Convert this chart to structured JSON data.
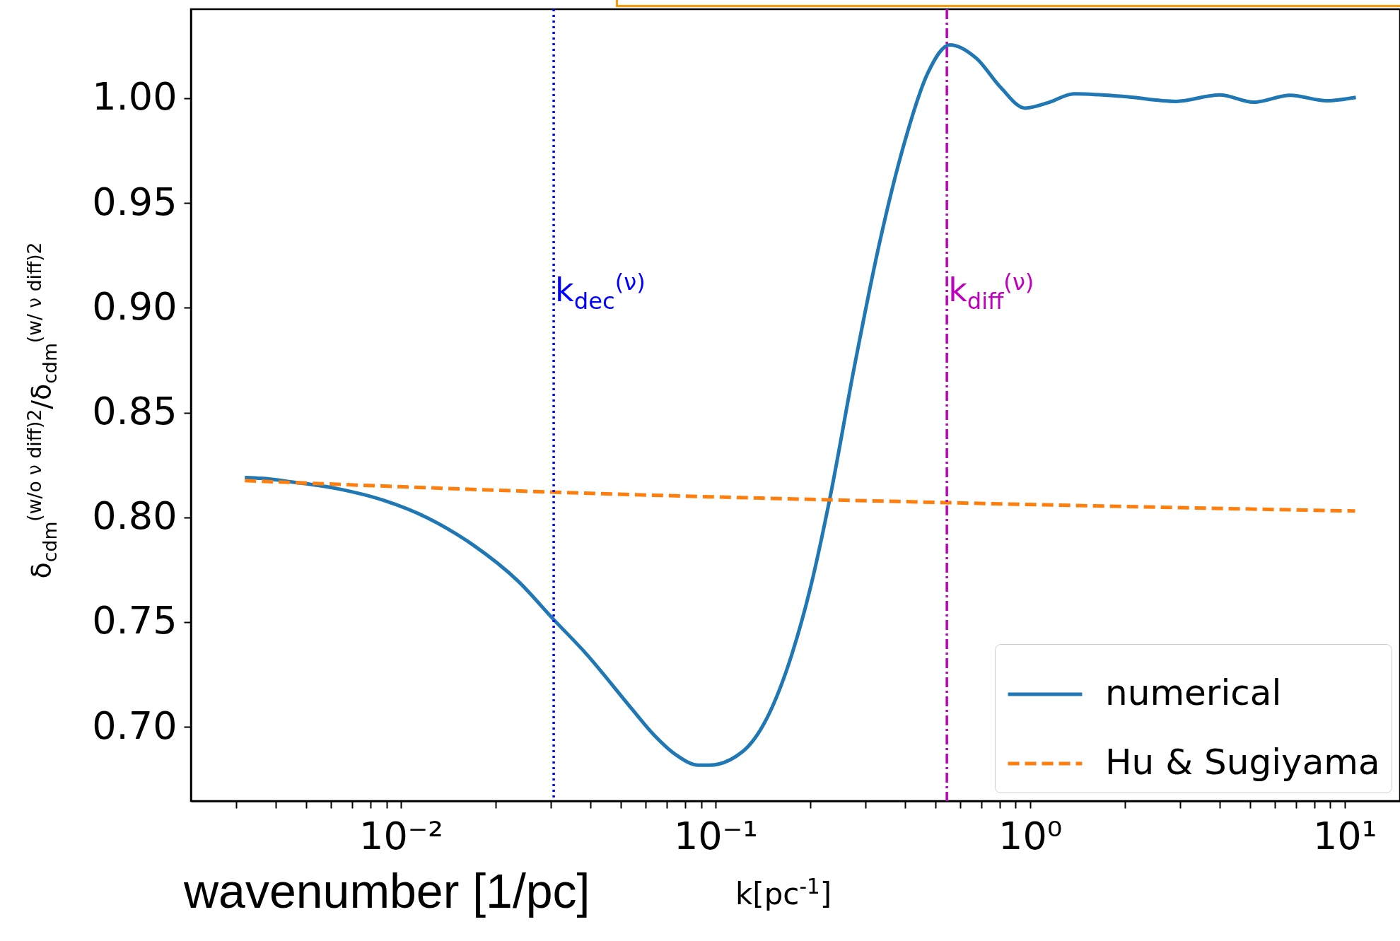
{
  "chart_data": {
    "type": "line",
    "xlabel": "wavenumber [1/pc]",
    "ylabel": "δ$_{cdm}$$^{(w/o ν diff)2}$/δ$_{cdm}$$^{(w/ ν diff)2}$",
    "annotations": [
      "k[pc$^{-1}$]"
    ],
    "log": "x",
    "xlim": [
      0.00215,
      15
    ],
    "ylim": [
      0.6646,
      1.0425
    ],
    "xticks": [
      {
        "value": 0.003,
        "label": null
      },
      {
        "value": 0.004,
        "label": null
      },
      {
        "value": 0.005,
        "label": null
      },
      {
        "value": 0.006,
        "label": null
      },
      {
        "value": 0.007,
        "label": null
      },
      {
        "value": 0.008,
        "label": null
      },
      {
        "value": 0.009,
        "label": null
      },
      {
        "value": 0.01,
        "label": "10⁻²"
      },
      {
        "value": 0.02,
        "label": null
      },
      {
        "value": 0.03,
        "label": null
      },
      {
        "value": 0.04,
        "label": null
      },
      {
        "value": 0.05,
        "label": null
      },
      {
        "value": 0.06,
        "label": null
      },
      {
        "value": 0.07,
        "label": null
      },
      {
        "value": 0.08,
        "label": null
      },
      {
        "value": 0.09,
        "label": null
      },
      {
        "value": 0.1,
        "label": "10⁻¹"
      },
      {
        "value": 0.2,
        "label": null
      },
      {
        "value": 0.3,
        "label": null
      },
      {
        "value": 0.4,
        "label": null
      },
      {
        "value": 0.5,
        "label": null
      },
      {
        "value": 0.6,
        "label": null
      },
      {
        "value": 0.7,
        "label": null
      },
      {
        "value": 0.8,
        "label": null
      },
      {
        "value": 0.9,
        "label": null
      },
      {
        "value": 1,
        "label": "10⁰"
      },
      {
        "value": 2,
        "label": null
      },
      {
        "value": 3,
        "label": null
      },
      {
        "value": 4,
        "label": null
      },
      {
        "value": 5,
        "label": null
      },
      {
        "value": 6,
        "label": null
      },
      {
        "value": 7,
        "label": null
      },
      {
        "value": 8,
        "label": null
      },
      {
        "value": 9,
        "label": null
      },
      {
        "value": 10,
        "label": "10¹"
      }
    ],
    "yticks": [
      {
        "value": 0.7,
        "label": "0.70"
      },
      0.75,
      {
        "value": 0.8,
        "label": "0.80"
      },
      0.85,
      {
        "value": 0.9,
        "label": "0.90"
      },
      0.95,
      {
        "value": 1,
        "label": "1.00"
      }
    ],
    "grid": false,
    "legend": "bottom right",
    "series": [
      {
        "name": "numerical",
        "color": "#1f77b4",
        "line_style": "solid",
        "x": [
          0.00319,
          0.00361,
          0.00454,
          0.00631,
          0.00877,
          0.0122,
          0.017,
          0.0236,
          0.0306,
          0.0387,
          0.0538,
          0.0635,
          0.0748,
          0.0883,
          0.0955,
          0.122,
          0.146,
          0.175,
          0.201,
          0.231,
          0.277,
          0.332,
          0.396,
          0.473,
          0.556,
          0.676,
          0.807,
          0.964,
          1.153,
          1.377,
          1.968,
          2.911,
          4.009,
          5.14,
          6.714,
          8.77,
          10.86
        ],
        "values": [
          0.819,
          0.8186,
          0.8168,
          0.8136,
          0.8082,
          0.7996,
          0.7867,
          0.7695,
          0.7512,
          0.7351,
          0.7092,
          0.6964,
          0.6867,
          0.6817,
          0.6817,
          0.6882,
          0.7044,
          0.7347,
          0.7672,
          0.809,
          0.8726,
          0.9307,
          0.9772,
          1.012,
          1.0255,
          1.019,
          1.0051,
          0.9953,
          0.9981,
          1.0021,
          1.0009,
          0.9985,
          1.0016,
          0.9981,
          1.0014,
          0.9988,
          1.0004
        ]
      },
      {
        "name": "Hu & Sugiyama",
        "color": "#ff7f0e",
        "line_style": "dashed",
        "x": [
          0.00319,
          0.0306,
          0.544,
          10.8
        ],
        "values": [
          0.8175,
          0.812,
          0.807,
          0.803
        ]
      }
    ],
    "ref_lines": [
      {
        "axis": "x",
        "value": 0.0306,
        "label": "k$_{dec}$$^{(ν)}$",
        "color": "#0000ff",
        "line_style": "dotted"
      },
      {
        "axis": "x",
        "value": 0.544,
        "label": "k$_{diff}$$^{(ν)}$",
        "color": "#bf00bf",
        "line_style": "dashdot"
      }
    ]
  }
}
